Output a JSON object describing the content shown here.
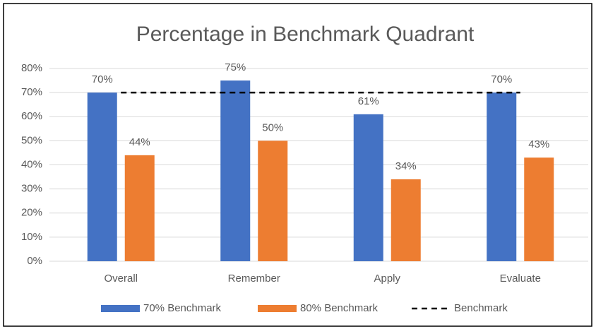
{
  "chart_data": {
    "type": "bar",
    "title": "Percentage in Benchmark Quadrant",
    "categories": [
      "Overall",
      "Remember",
      "Apply",
      "Evaluate"
    ],
    "series": [
      {
        "name": "70% Benchmark",
        "color": "#4472c4",
        "values": [
          70,
          75,
          61,
          70
        ],
        "value_labels": [
          "70%",
          "75%",
          "61%",
          "70%"
        ]
      },
      {
        "name": "80% Benchmark",
        "color": "#ed7d31",
        "values": [
          44,
          50,
          34,
          43
        ],
        "value_labels": [
          "44%",
          "50%",
          "34%",
          "43%"
        ]
      },
      {
        "name": "Benchmark",
        "type": "line",
        "style": "dashed",
        "color": "#000000",
        "values": [
          70,
          70,
          70,
          70
        ]
      }
    ],
    "ylim": [
      0,
      80
    ],
    "yticks": [
      {
        "value": 0,
        "label": "0%"
      },
      {
        "value": 10,
        "label": "10%"
      },
      {
        "value": 20,
        "label": "20%"
      },
      {
        "value": 30,
        "label": "30%"
      },
      {
        "value": 40,
        "label": "40%"
      },
      {
        "value": 50,
        "label": "50%"
      },
      {
        "value": 60,
        "label": "60%"
      },
      {
        "value": 70,
        "label": "70%"
      },
      {
        "value": 80,
        "label": "80%"
      }
    ],
    "grid": true,
    "legend": "bottom"
  }
}
